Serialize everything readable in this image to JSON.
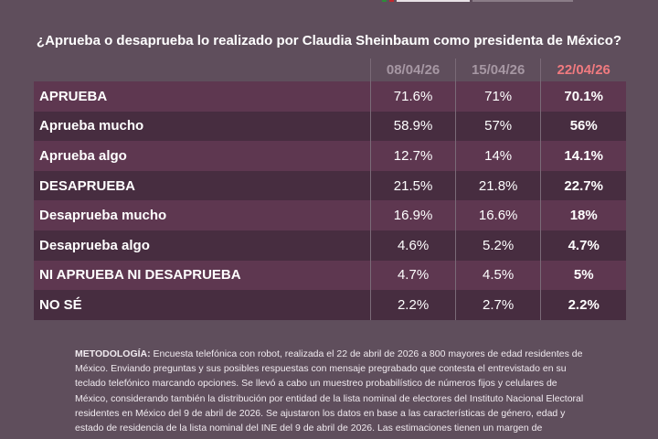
{
  "title": "¿Aprueba o desaprueba lo realizado por Claudia Sheinbaum como presidenta de México?",
  "columns": [
    "08/04/26",
    "15/04/26",
    "22/04/26"
  ],
  "rows": [
    {
      "label": "APRUEBA",
      "values": [
        "71.6%",
        "71%",
        "70.1%"
      ]
    },
    {
      "label": "Aprueba mucho",
      "values": [
        "58.9%",
        "57%",
        "56%"
      ]
    },
    {
      "label": "Aprueba algo",
      "values": [
        "12.7%",
        "14%",
        "14.1%"
      ]
    },
    {
      "label": "DESAPRUEBA",
      "values": [
        "21.5%",
        "21.8%",
        "22.7%"
      ]
    },
    {
      "label": "Desaprueba mucho",
      "values": [
        "16.9%",
        "16.6%",
        "18%"
      ]
    },
    {
      "label": "Desaprueba algo",
      "values": [
        "4.6%",
        "5.2%",
        "4.7%"
      ]
    },
    {
      "label": "NI APRUEBA NI DESAPRUEBA",
      "values": [
        "4.7%",
        "4.5%",
        "5%"
      ]
    },
    {
      "label": "NO SÉ",
      "values": [
        "2.2%",
        "2.7%",
        "2.2%"
      ]
    }
  ],
  "methodology": {
    "label": "METODOLOGÍA:",
    "text": " Encuesta telefónica con robot, realizada el 22 de abril de 2026 a 800 mayores de edad residentes de México. Enviando preguntas y sus posibles respuestas con mensaje pregrabado que contesta el entrevistado en su teclado telefónico marcando opciones. Se llevó a cabo un muestreo probabilístico de números fijos y celulares de México, considerando también la distribución por entidad de la lista nominal de electores del Instituto Nacional Electoral residentes en México del 9 de abril de 2026. Se ajustaron los datos en base a las características de género, edad y estado de residencia de la lista nominal del INE del 9 de abril de 2026. Las estimaciones tienen un margen de"
  },
  "colors": {
    "background": "#5f4e5c",
    "row_light": "#5e3750",
    "row_dark": "#472d40",
    "latest_header": "#f07a7f"
  }
}
